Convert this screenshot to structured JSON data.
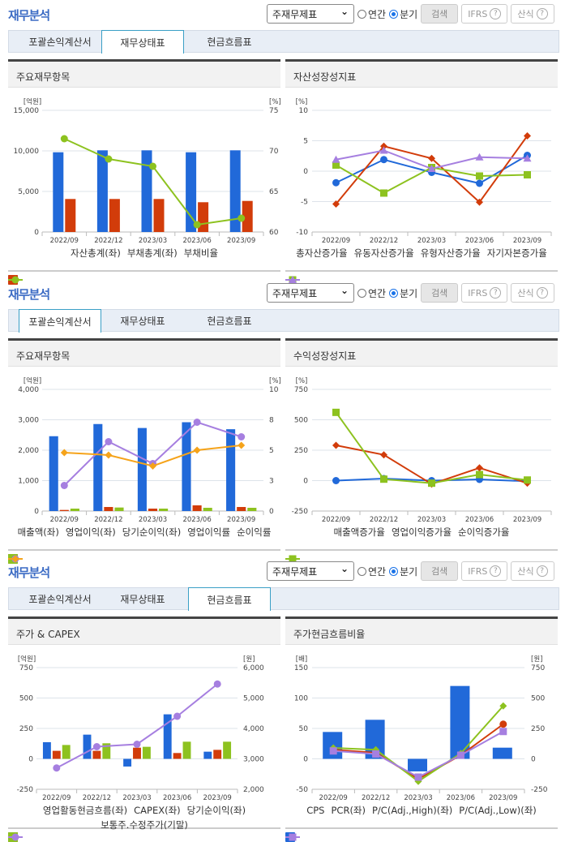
{
  "sections": [
    {
      "title": "재무분석",
      "select_value": "주재무제표",
      "radio_annual": "연간",
      "radio_quarter": "분기",
      "radio_selected": "분기",
      "search_label": "검색",
      "ifrs_label": "IFRS",
      "formula_label": "산식",
      "tabs": [
        "포괄손익계산서",
        "재무상태표",
        "현금흐름표"
      ],
      "active_tab": 1,
      "left_title": "주요재무항목",
      "right_title": "자산성장성지표"
    },
    {
      "title": "재무분석",
      "select_value": "주재무제표",
      "radio_annual": "연간",
      "radio_quarter": "분기",
      "radio_selected": "분기",
      "search_label": "검색",
      "ifrs_label": "IFRS",
      "formula_label": "산식",
      "tabs": [
        "포괄손익계산서",
        "재무상태표",
        "현금흐름표"
      ],
      "active_tab": 0,
      "left_title": "주요재무항목",
      "right_title": "수익성장성지표"
    },
    {
      "title": "재무분석",
      "select_value": "주재무제표",
      "radio_annual": "연간",
      "radio_quarter": "분기",
      "radio_selected": "분기",
      "search_label": "검색",
      "ifrs_label": "IFRS",
      "formula_label": "산식",
      "tabs": [
        "포괄손익계산서",
        "재무상태표",
        "현금흐름표"
      ],
      "active_tab": 2,
      "left_title": "주가 & CAPEX",
      "right_title": "주가현금흐름비율"
    }
  ],
  "colors": {
    "blue": "#2169d9",
    "red": "#d23c0a",
    "green": "#8dc21f",
    "purple": "#a67fe0",
    "orange": "#f5a31a",
    "title": "#3b6bc4"
  },
  "chart_data": [
    {
      "type": "bar",
      "categories": [
        "2022/09",
        "2022/12",
        "2023/03",
        "2023/06",
        "2023/09"
      ],
      "left_unit": "[억원]",
      "left_ylim": [
        0,
        15000
      ],
      "left_ticks": [
        "0",
        "5,000",
        "10,000",
        "15,000"
      ],
      "right_unit": "[%]",
      "right_ylim": [
        60,
        75
      ],
      "right_ticks": [
        "60",
        "65",
        "70",
        "75"
      ],
      "grid": true,
      "legend": "bottom",
      "series": [
        {
          "name": "자산총계(좌)",
          "kind": "bar",
          "axis": "left",
          "color": "#2169d9",
          "values": [
            9830,
            10070,
            10070,
            9830,
            10070
          ]
        },
        {
          "name": "부채총계(좌)",
          "kind": "bar",
          "axis": "left",
          "color": "#d23c0a",
          "values": [
            4070,
            4070,
            4070,
            3670,
            3830
          ]
        },
        {
          "name": "부채비율",
          "kind": "line",
          "axis": "right",
          "marker": "circle",
          "color": "#8dc21f",
          "values": [
            71.5,
            69.0,
            68.1,
            60.9,
            61.7
          ]
        }
      ]
    },
    {
      "type": "line",
      "categories": [
        "2022/09",
        "2022/12",
        "2023/03",
        "2023/06",
        "2023/09"
      ],
      "left_unit": "[%]",
      "left_ylim": [
        -10,
        10
      ],
      "left_ticks": [
        "-10",
        "-5",
        "0",
        "5",
        "10"
      ],
      "grid": true,
      "legend": "bottom",
      "series": [
        {
          "name": "총자산증가율",
          "kind": "line",
          "axis": "left",
          "marker": "circle",
          "color": "#2169d9",
          "values": [
            -1.9,
            1.9,
            -0.2,
            -2.0,
            2.6
          ]
        },
        {
          "name": "유동자산증가율",
          "kind": "line",
          "axis": "left",
          "marker": "diamond",
          "color": "#d23c0a",
          "values": [
            -5.4,
            4.1,
            2.1,
            -5.1,
            5.8
          ]
        },
        {
          "name": "유형자산증가율",
          "kind": "line",
          "axis": "left",
          "marker": "square",
          "color": "#8dc21f",
          "values": [
            1.0,
            -3.6,
            0.6,
            -0.8,
            -0.6
          ]
        },
        {
          "name": "자기자본증가율",
          "kind": "line",
          "axis": "left",
          "marker": "triangle",
          "color": "#a67fe0",
          "values": [
            1.9,
            3.4,
            0.4,
            2.3,
            2.1
          ]
        }
      ]
    },
    {
      "type": "bar",
      "categories": [
        "2022/09",
        "2022/12",
        "2023/03",
        "2023/06",
        "2023/09"
      ],
      "left_unit": "[억원]",
      "left_ylim": [
        0,
        4000
      ],
      "left_ticks": [
        "0",
        "1,000",
        "2,000",
        "3,000",
        "4,000"
      ],
      "right_unit": "[%]",
      "right_ylim": [
        0,
        10
      ],
      "right_ticks": [
        "0",
        "3",
        "5",
        "8",
        "10"
      ],
      "grid": true,
      "legend": "bottom",
      "series": [
        {
          "name": "매출액(좌)",
          "kind": "bar",
          "axis": "left",
          "color": "#2169d9",
          "values": [
            2460,
            2860,
            2730,
            2920,
            2690
          ]
        },
        {
          "name": "영업이익(좌)",
          "kind": "bar",
          "axis": "left",
          "color": "#d23c0a",
          "values": [
            36,
            133,
            80,
            187,
            133
          ]
        },
        {
          "name": "당기순이익(좌)",
          "kind": "bar",
          "axis": "left",
          "color": "#8dc21f",
          "values": [
            80,
            116,
            80,
            107,
            107
          ]
        },
        {
          "name": "영업이익률",
          "kind": "line",
          "axis": "right",
          "marker": "circle",
          "color": "#a67fe0",
          "values": [
            2.1,
            5.7,
            3.9,
            7.3,
            6.1
          ]
        },
        {
          "name": "순이익률",
          "kind": "line",
          "axis": "right",
          "marker": "diamond",
          "color": "#f5a31a",
          "values": [
            4.8,
            4.6,
            3.7,
            5.0,
            5.4
          ]
        }
      ]
    },
    {
      "type": "line",
      "categories": [
        "2022/09",
        "2022/12",
        "2023/03",
        "2023/06",
        "2023/09"
      ],
      "left_unit": "[%]",
      "left_ylim": [
        -250,
        750
      ],
      "left_ticks": [
        "-250",
        "0",
        "250",
        "500",
        "750"
      ],
      "grid": true,
      "legend": "bottom",
      "series": [
        {
          "name": "매출액증가율",
          "kind": "line",
          "axis": "left",
          "marker": "circle",
          "color": "#2169d9",
          "values": [
            0,
            17,
            0,
            10,
            -5
          ]
        },
        {
          "name": "영업이익증가율",
          "kind": "line",
          "axis": "left",
          "marker": "diamond",
          "color": "#d23c0a",
          "values": [
            290,
            212,
            -28,
            105,
            -21
          ]
        },
        {
          "name": "순이익증가율",
          "kind": "line",
          "axis": "left",
          "marker": "square",
          "color": "#8dc21f",
          "values": [
            561,
            12,
            -21,
            50,
            5
          ]
        }
      ]
    },
    {
      "type": "bar",
      "categories": [
        "2022/09",
        "2022/12",
        "2023/03",
        "2023/06",
        "2023/09"
      ],
      "left_unit": "[억원]",
      "left_ylim": [
        -250,
        750
      ],
      "left_ticks": [
        "-250",
        "0",
        "250",
        "500",
        "750"
      ],
      "right_unit": "[원]",
      "right_ylim": [
        2000,
        6000
      ],
      "right_ticks": [
        "2,000",
        "3,000",
        "4,000",
        "5,000",
        "6,000"
      ],
      "grid": true,
      "legend": "bottom",
      "series": [
        {
          "name": "영업활동현금흐름(좌)",
          "kind": "bar",
          "axis": "left",
          "color": "#2169d9",
          "values": [
            137,
            199,
            -63,
            366,
            59
          ]
        },
        {
          "name": "CAPEX(좌)",
          "kind": "bar",
          "axis": "left",
          "color": "#d23c0a",
          "values": [
            66,
            66,
            92,
            48,
            74
          ]
        },
        {
          "name": "당기순이익(좌)",
          "kind": "bar",
          "axis": "left",
          "color": "#8dc21f",
          "values": [
            114,
            128,
            99,
            141,
            141
          ]
        },
        {
          "name": "보통주.수정주가(기말)",
          "kind": "line",
          "axis": "right",
          "marker": "circle",
          "color": "#a67fe0",
          "values": [
            2700,
            3400,
            3480,
            4400,
            5460
          ]
        }
      ]
    },
    {
      "type": "bar",
      "categories": [
        "2022/09",
        "2022/12",
        "2023/03",
        "2023/06",
        "2023/09"
      ],
      "left_unit": "[배]",
      "left_ylim": [
        -50,
        150
      ],
      "left_ticks": [
        "-50",
        "0",
        "50",
        "100",
        "150"
      ],
      "right_unit": "[원]",
      "right_ylim": [
        -250,
        750
      ],
      "right_ticks": [
        "-250",
        "0",
        "250",
        "500",
        "750"
      ],
      "grid": true,
      "legend": "bottom",
      "series": [
        {
          "name": "CPS",
          "kind": "bar",
          "axis": "right",
          "color": "#2169d9",
          "values": [
            221,
            321,
            -103,
            599,
            92
          ]
        },
        {
          "name": "PCR(좌)",
          "kind": "line",
          "axis": "left",
          "marker": "circle",
          "color": "#d23c0a",
          "values": [
            15,
            10,
            -33,
            6,
            57
          ]
        },
        {
          "name": "P/C(Adj.,High)(좌)",
          "kind": "line",
          "axis": "left",
          "marker": "diamond",
          "color": "#8dc21f",
          "values": [
            18,
            15,
            -37,
            9,
            87
          ]
        },
        {
          "name": "P/C(Adj.,Low)(좌)",
          "kind": "line",
          "axis": "left",
          "marker": "square",
          "color": "#a67fe0",
          "values": [
            13,
            8,
            -30,
            6,
            45
          ]
        }
      ]
    }
  ]
}
